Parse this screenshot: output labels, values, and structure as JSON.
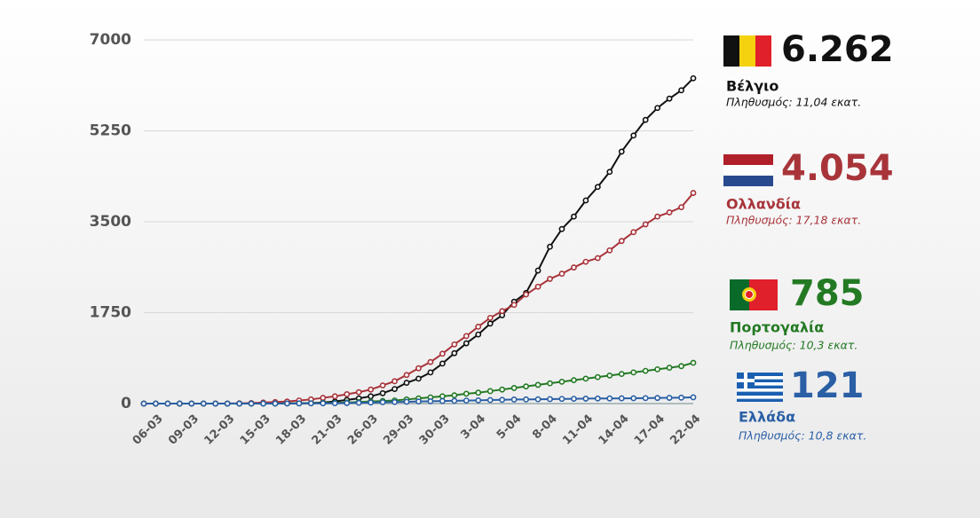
{
  "chart_data": {
    "type": "line",
    "categories": [
      null,
      "06-03",
      null,
      null,
      "09-03",
      null,
      null,
      "12-03",
      null,
      null,
      "15-03",
      null,
      null,
      "18-03",
      null,
      null,
      "21-03",
      null,
      null,
      "26-03",
      null,
      null,
      "29-03",
      null,
      null,
      "30-03",
      null,
      null,
      "3-04",
      null,
      null,
      "5-04",
      null,
      null,
      "8-04",
      null,
      null,
      "11-04",
      null,
      null,
      "14-04",
      null,
      null,
      "17-04",
      null,
      null,
      "22-04"
    ],
    "series": [
      {
        "name": "Βέλγιο",
        "color": "#111111",
        "last_label": "6.262",
        "population": "Πληθυσμός: 11,04 εκατ.",
        "values": [
          0,
          0,
          0,
          0,
          0,
          0,
          0,
          0,
          0,
          0,
          2,
          3,
          4,
          5,
          10,
          20,
          40,
          70,
          100,
          140,
          200,
          280,
          400,
          480,
          600,
          770,
          970,
          1160,
          1330,
          1540,
          1700,
          1960,
          2130,
          2560,
          3020,
          3360,
          3600,
          3910,
          4170,
          4460,
          4850,
          5160,
          5460,
          5690,
          5870,
          6030,
          6262
        ]
      },
      {
        "name": "Ολλανδία",
        "color": "#a8343a",
        "last_label": "4.054",
        "population": "Πληθυσμός: 17,18 εκατ.",
        "values": [
          0,
          0,
          0,
          0,
          0,
          0,
          1,
          2,
          5,
          10,
          20,
          30,
          40,
          60,
          80,
          110,
          140,
          180,
          220,
          270,
          350,
          430,
          550,
          680,
          800,
          960,
          1140,
          1300,
          1480,
          1650,
          1780,
          1900,
          2100,
          2250,
          2400,
          2500,
          2620,
          2730,
          2800,
          2950,
          3130,
          3300,
          3450,
          3600,
          3680,
          3780,
          4054
        ]
      },
      {
        "name": "Πορτογαλία",
        "color": "#237a23",
        "last_label": "785",
        "population": "Πληθυσμός: 10,3 εκατ.",
        "values": [
          0,
          0,
          0,
          0,
          0,
          0,
          0,
          0,
          0,
          0,
          0,
          0,
          2,
          4,
          6,
          10,
          13,
          20,
          30,
          40,
          50,
          60,
          80,
          100,
          120,
          140,
          160,
          190,
          210,
          240,
          270,
          300,
          330,
          360,
          390,
          420,
          450,
          480,
          510,
          540,
          570,
          600,
          630,
          660,
          690,
          720,
          785
        ]
      },
      {
        "name": "Ελλάδα",
        "color": "#2a5fa5",
        "last_label": "121",
        "population": "Πληθυσμός: 10,8 εκατ.",
        "values": [
          0,
          0,
          0,
          0,
          0,
          0,
          0,
          0,
          0,
          0,
          1,
          1,
          2,
          3,
          4,
          5,
          6,
          10,
          15,
          20,
          26,
          30,
          35,
          40,
          45,
          50,
          53,
          58,
          62,
          68,
          72,
          78,
          80,
          83,
          86,
          90,
          92,
          95,
          98,
          99,
          101,
          102,
          105,
          108,
          110,
          114,
          121
        ]
      }
    ],
    "ylim": [
      0,
      7000
    ],
    "yticks": [
      0,
      1750,
      3500,
      5250,
      7000
    ],
    "grid": true
  }
}
